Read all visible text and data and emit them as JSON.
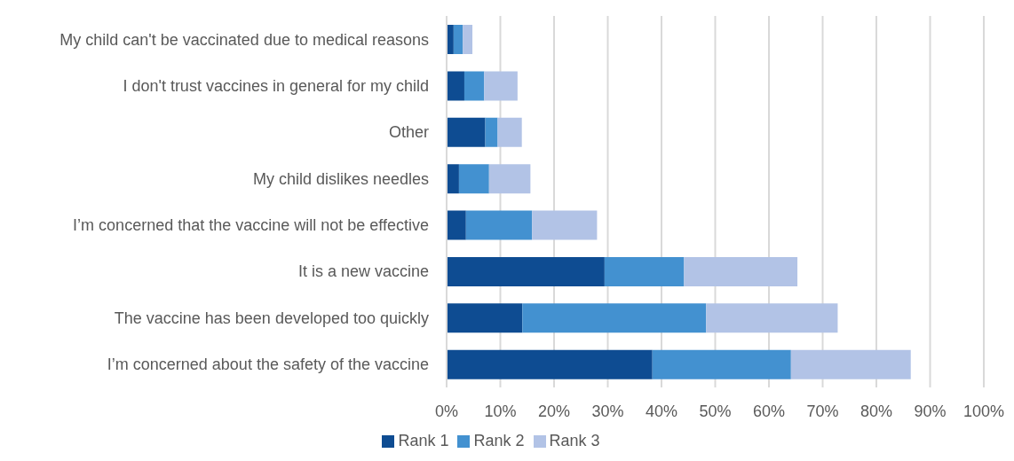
{
  "chart_data": {
    "type": "bar",
    "orientation": "horizontal",
    "stacked": true,
    "categories": [
      "My child can't be vaccinated due to medical reasons",
      "I don't trust vaccines in general for my child",
      "Other",
      "My child dislikes needles",
      "I’m concerned that the vaccine will not be effective",
      "It is a new vaccine",
      "The vaccine has been developed too quickly",
      "I’m concerned about the safety of the vaccine"
    ],
    "series": [
      {
        "name": "Rank 1",
        "color": "#0e4c92",
        "values": [
          1.3,
          3.3,
          7.2,
          2.3,
          3.6,
          29.4,
          14.1,
          38.3
        ]
      },
      {
        "name": "Rank 2",
        "color": "#4391d0",
        "values": [
          1.7,
          3.7,
          2.3,
          5.6,
          12.3,
          14.8,
          34.2,
          25.8
        ]
      },
      {
        "name": "Rank 3",
        "color": "#b2c3e6",
        "values": [
          1.8,
          6.2,
          4.5,
          7.7,
          12.1,
          21.1,
          24.5,
          22.3
        ]
      }
    ],
    "xlim": [
      0,
      100
    ],
    "xticks": [
      {
        "value": 0,
        "label": "0%"
      },
      {
        "value": 10,
        "label": "10%"
      },
      {
        "value": 20,
        "label": "20%"
      },
      {
        "value": 30,
        "label": "30%"
      },
      {
        "value": 40,
        "label": "40%"
      },
      {
        "value": 50,
        "label": "50%"
      },
      {
        "value": 60,
        "label": "60%"
      },
      {
        "value": 70,
        "label": "70%"
      },
      {
        "value": 80,
        "label": "80%"
      },
      {
        "value": 90,
        "label": "90%"
      },
      {
        "value": 100,
        "label": "100%"
      }
    ],
    "grid": "x",
    "legend": "bottom"
  }
}
